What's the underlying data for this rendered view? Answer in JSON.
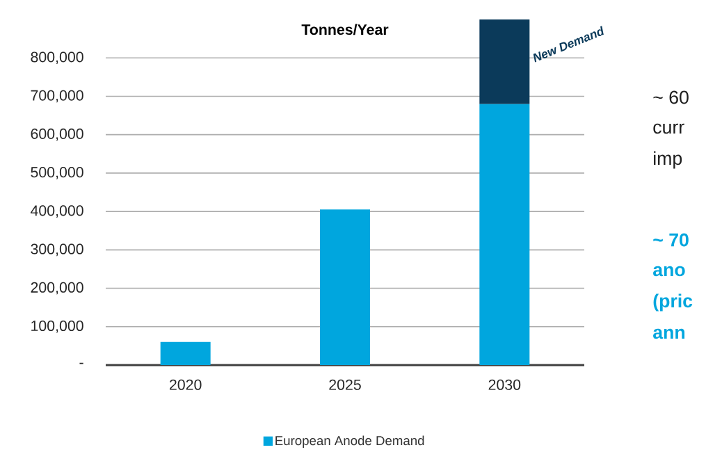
{
  "chart_data": {
    "type": "bar",
    "title": "Tonnes/Year",
    "stacked": true,
    "categories": [
      "2020",
      "2025",
      "2030"
    ],
    "series": [
      {
        "name": "European Anode Demand",
        "color": "#00a6de",
        "values": [
          60000,
          405000,
          680000
        ]
      },
      {
        "name": "New Demand",
        "color": "#0b3a5a",
        "values": [
          null,
          null,
          220000
        ]
      }
    ],
    "ylim": [
      0,
      900000
    ],
    "yticks": [
      {
        "value": 0,
        "label": "-"
      },
      {
        "value": 100000,
        "label": "100,000"
      },
      {
        "value": 200000,
        "label": "200,000"
      },
      {
        "value": 300000,
        "label": "300,000"
      },
      {
        "value": 400000,
        "label": "400,000"
      },
      {
        "value": 500000,
        "label": "500,000"
      },
      {
        "value": 600000,
        "label": "600,000"
      },
      {
        "value": 700000,
        "label": "700,000"
      },
      {
        "value": 800000,
        "label": "800,000"
      }
    ],
    "grid": "y",
    "legend": "bottom",
    "annotations": [
      "~ 60",
      "curr",
      "imp",
      "~ 70",
      "ano",
      "(pric",
      "ann"
    ]
  }
}
